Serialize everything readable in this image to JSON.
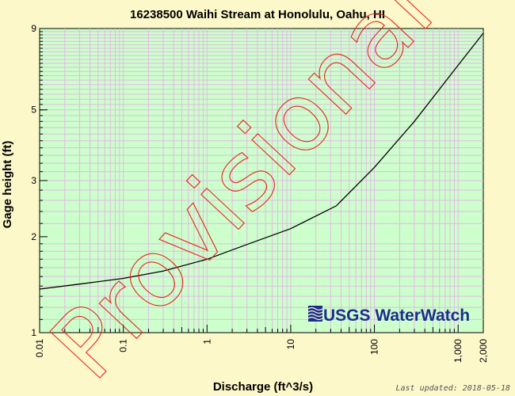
{
  "chart_data": {
    "type": "line",
    "title": "16238500 Waihi Stream at Honolulu, Oahu, HI",
    "xlabel": "Discharge (ft^3/s)",
    "ylabel": "Gage height (ft)",
    "x_scale": "log",
    "y_scale": "log",
    "xlim": [
      0.01,
      2000
    ],
    "ylim": [
      1,
      9
    ],
    "x_ticks": [
      {
        "value": 0.01,
        "label": "0.01"
      },
      {
        "value": 0.1,
        "label": "0.1"
      },
      {
        "value": 1,
        "label": "1"
      },
      {
        "value": 10,
        "label": "10"
      },
      {
        "value": 100,
        "label": "100"
      },
      {
        "value": 1000,
        "label": "1,000"
      },
      {
        "value": 2000,
        "label": "2,000"
      }
    ],
    "y_ticks": [
      {
        "value": 1,
        "label": "1"
      },
      {
        "value": 2,
        "label": "2"
      },
      {
        "value": 3,
        "label": "3"
      },
      {
        "value": 5,
        "label": "5"
      },
      {
        "value": 9,
        "label": "9"
      }
    ],
    "series": [
      {
        "name": "Rating curve",
        "x": [
          0.01,
          0.03,
          0.1,
          0.3,
          1,
          3,
          10,
          35,
          100,
          300,
          1000,
          2000
        ],
        "y": [
          1.37,
          1.42,
          1.48,
          1.56,
          1.7,
          1.89,
          2.12,
          2.5,
          3.3,
          4.6,
          6.9,
          8.7
        ]
      }
    ],
    "grid": true,
    "watermark": "Provisional",
    "logo": "USGS WaterWatch"
  },
  "footer": {
    "last_updated": "Last updated: 2018-05-18"
  }
}
